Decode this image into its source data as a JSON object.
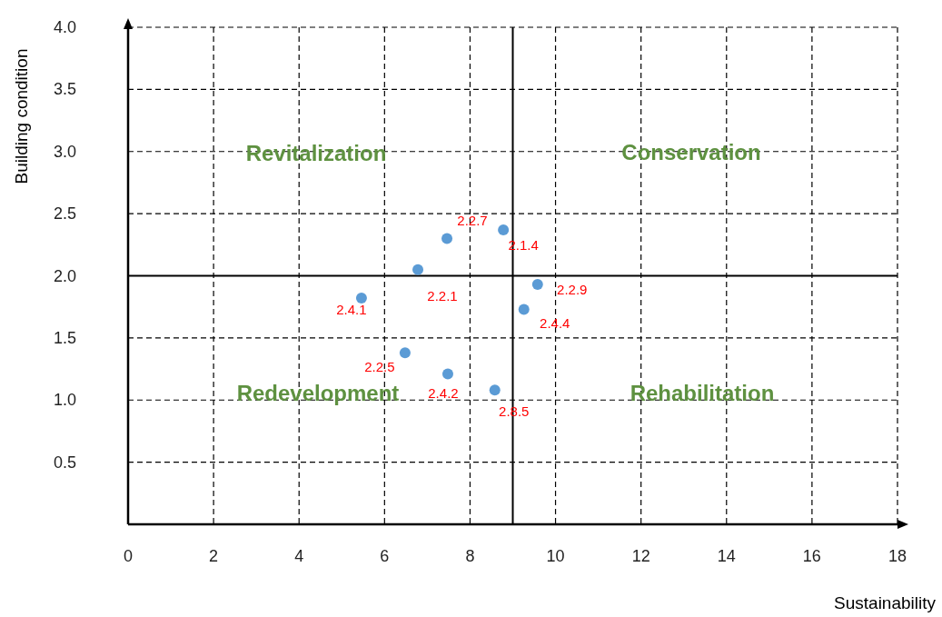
{
  "chart_data": {
    "type": "scatter",
    "xlabel": "Sustainability",
    "ylabel": "Building condition",
    "xlim": [
      0,
      18
    ],
    "ylim": [
      0,
      4
    ],
    "xticks": [
      0,
      2,
      4,
      6,
      8,
      10,
      12,
      14,
      16,
      18
    ],
    "yticks": [
      {
        "value": 0.5,
        "label": "0.5"
      },
      {
        "value": 1,
        "label": "1.0"
      },
      {
        "value": 1.5,
        "label": "1.5"
      },
      {
        "value": 2,
        "label": "2.0"
      },
      {
        "value": 2.5,
        "label": "2.5"
      },
      {
        "value": 3,
        "label": "3.0"
      },
      {
        "value": 3.5,
        "label": "3.5"
      },
      {
        "value": 4,
        "label": "4.0"
      }
    ],
    "grid": true,
    "marker": "circle",
    "x": [
      7.46,
      8.78,
      6.78,
      5.46,
      9.58,
      9.26,
      6.48,
      7.48,
      8.58
    ],
    "series": [
      {
        "color": "#5b9bd5",
        "values": [
          2.3,
          2.37,
          2.05,
          1.82,
          1.93,
          1.73,
          1.38,
          1.21,
          1.08
        ],
        "value_labels": [
          "2.2.7",
          "2.1.4",
          "2.2.1",
          "2.4.1",
          "2.2.9",
          "2.4.4",
          "2.2.5",
          "2.4.2",
          "2.8.5"
        ]
      }
    ],
    "ref_lines": [
      {
        "axis": "x",
        "value": 9,
        "color": "#000000",
        "line_style": "solid"
      },
      {
        "axis": "y",
        "value": 2,
        "color": "#000000",
        "line_style": "solid"
      }
    ],
    "annotations": [
      "Revitalization",
      "Conservation",
      "Redevelopment",
      "Rehabilitation"
    ]
  }
}
